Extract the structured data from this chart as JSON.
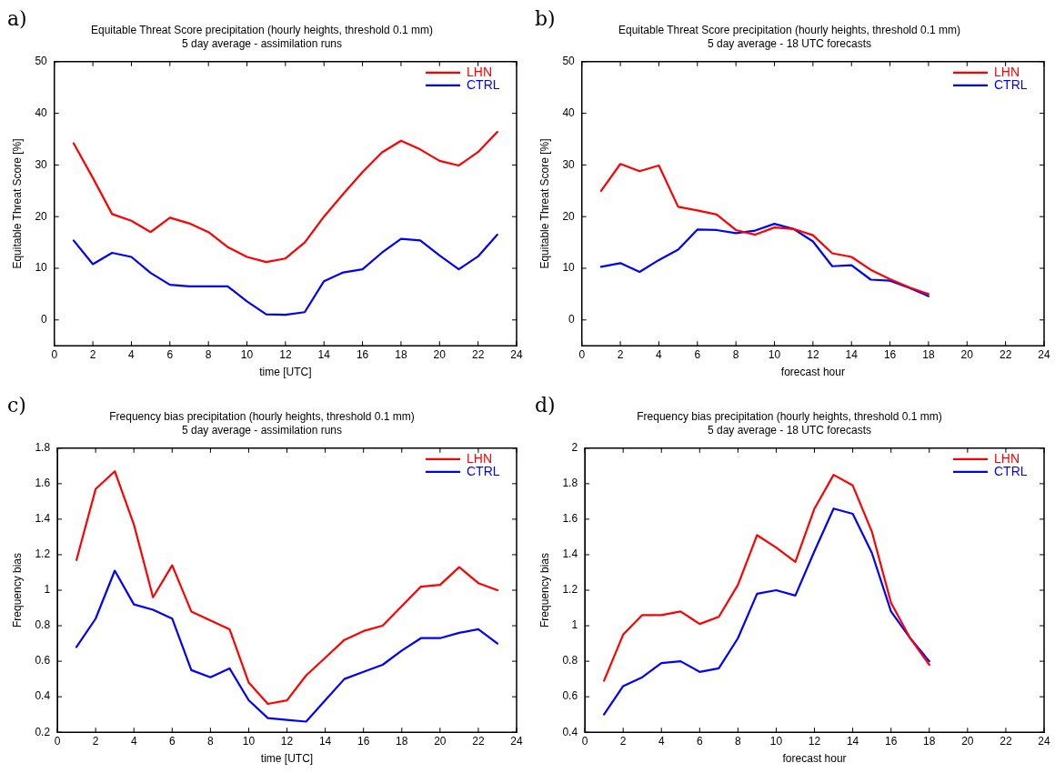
{
  "chart_data": [
    {
      "type": "line",
      "title": "Equitable Threat Score precipitation (hourly heights, threshold 0.1 mm)",
      "subtitle": "5 day average - assimilation runs",
      "xlabel": "time [UTC]",
      "ylabel": "Equitable Threat Score [%]",
      "annotations": [
        "a)"
      ],
      "x": [
        1,
        2,
        3,
        4,
        5,
        6,
        7,
        8,
        9,
        10,
        11,
        12,
        13,
        14,
        15,
        16,
        17,
        18,
        19,
        20,
        21,
        22,
        23
      ],
      "xlim": [
        0,
        24
      ],
      "xticks": [
        0,
        2,
        4,
        6,
        8,
        10,
        12,
        14,
        16,
        18,
        20,
        22,
        24
      ],
      "ylim": [
        -5,
        50
      ],
      "yticks": [
        0,
        10,
        20,
        30,
        40,
        50
      ],
      "grid": false,
      "legend": "top right",
      "marker": "none",
      "line_style": "solid",
      "series": [
        {
          "name": "LHN",
          "color": "#ff0000",
          "values": [
            34.2,
            27.5,
            20.5,
            19.2,
            17,
            19.8,
            18.7,
            17,
            14.1,
            12.2,
            11.2,
            11.9,
            15,
            20,
            24.4,
            28.6,
            32.4,
            34.7,
            33,
            30.8,
            29.9,
            32.5,
            36.4
          ]
        },
        {
          "name": "CTRL",
          "color": "#0000ff",
          "values": [
            15.4,
            10.8,
            13,
            12.2,
            9.1,
            6.8,
            6.5,
            6.5,
            6.5,
            3.6,
            1.1,
            1,
            1.5,
            7.5,
            9.2,
            9.8,
            13,
            15.7,
            15.4,
            12.5,
            9.8,
            12.3,
            16.5
          ]
        }
      ]
    },
    {
      "type": "line",
      "title": "Equitable Threat Score precipitation (hourly heights, threshold 0.1 mm)",
      "subtitle": "5 day average - 18 UTC forecasts",
      "xlabel": "forecast hour",
      "ylabel": "Equitable Threat Score [%]",
      "annotations": [
        "b)"
      ],
      "x": [
        1,
        2,
        3,
        4,
        5,
        6,
        7,
        8,
        9,
        10,
        11,
        12,
        13,
        14,
        15,
        16,
        17,
        18
      ],
      "xlim": [
        0,
        24
      ],
      "xticks": [
        0,
        2,
        4,
        6,
        8,
        10,
        12,
        14,
        16,
        18,
        20,
        22,
        24
      ],
      "ylim": [
        -5,
        50
      ],
      "yticks": [
        0,
        10,
        20,
        30,
        40,
        50
      ],
      "grid": false,
      "legend": "top right",
      "marker": "none",
      "line_style": "solid",
      "series": [
        {
          "name": "LHN",
          "color": "#ff0000",
          "values": [
            25,
            30.2,
            28.8,
            29.9,
            21.9,
            21.2,
            20.4,
            17.4,
            16.5,
            17.9,
            17.6,
            16.4,
            12.9,
            12.2,
            9.7,
            7.9,
            6.3,
            5
          ]
        },
        {
          "name": "CTRL",
          "color": "#0000ff",
          "values": [
            10.3,
            11,
            9.3,
            11.6,
            13.6,
            17.5,
            17.4,
            16.8,
            17.3,
            18.6,
            17.6,
            15.2,
            10.4,
            10.6,
            7.8,
            7.6,
            6.2,
            4.6
          ]
        }
      ]
    },
    {
      "type": "line",
      "title": "Frequency bias precipitation (hourly heights, threshold 0.1 mm)",
      "subtitle": "5 day average - assimilation runs",
      "xlabel": "time [UTC]",
      "ylabel": "Frequency bias",
      "annotations": [
        "c)"
      ],
      "x": [
        1,
        2,
        3,
        4,
        5,
        6,
        7,
        8,
        9,
        10,
        11,
        12,
        13,
        14,
        15,
        16,
        17,
        18,
        19,
        20,
        21,
        22,
        23
      ],
      "xlim": [
        0,
        24
      ],
      "xticks": [
        0,
        2,
        4,
        6,
        8,
        10,
        12,
        14,
        16,
        18,
        20,
        22,
        24
      ],
      "ylim": [
        0.2,
        1.8
      ],
      "yticks": [
        0.2,
        0.4,
        0.6,
        0.8,
        1,
        1.2,
        1.4,
        1.6,
        1.8
      ],
      "grid": false,
      "legend": "top right",
      "marker": "none",
      "line_style": "solid",
      "series": [
        {
          "name": "LHN",
          "color": "#ff0000",
          "values": [
            1.17,
            1.57,
            1.67,
            1.37,
            0.96,
            1.14,
            0.88,
            0.83,
            0.78,
            0.48,
            0.36,
            0.38,
            0.52,
            0.62,
            0.72,
            0.77,
            0.8,
            0.91,
            1.02,
            1.03,
            1.13,
            1.04,
            1.0
          ]
        },
        {
          "name": "CTRL",
          "color": "#0000ff",
          "values": [
            0.68,
            0.84,
            1.11,
            0.92,
            0.89,
            0.84,
            0.55,
            0.51,
            0.56,
            0.38,
            0.28,
            0.27,
            0.26,
            0.38,
            0.5,
            0.54,
            0.58,
            0.66,
            0.73,
            0.73,
            0.76,
            0.78,
            0.7
          ]
        }
      ]
    },
    {
      "type": "line",
      "title": "Frequency bias precipitation (hourly heights, threshold 0.1 mm)",
      "subtitle": "5 day average - 18 UTC forecasts",
      "xlabel": "forecast hour",
      "ylabel": "Frequency bias",
      "annotations": [
        "d)"
      ],
      "x": [
        1,
        2,
        3,
        4,
        5,
        6,
        7,
        8,
        9,
        10,
        11,
        12,
        13,
        14,
        15,
        16,
        17,
        18
      ],
      "xlim": [
        0,
        24
      ],
      "xticks": [
        0,
        2,
        4,
        6,
        8,
        10,
        12,
        14,
        16,
        18,
        20,
        22,
        24
      ],
      "ylim": [
        0.4,
        2
      ],
      "yticks": [
        0.4,
        0.6,
        0.8,
        1,
        1.2,
        1.4,
        1.6,
        1.8,
        2
      ],
      "grid": false,
      "legend": "top right",
      "marker": "none",
      "line_style": "solid",
      "series": [
        {
          "name": "LHN",
          "color": "#ff0000",
          "values": [
            0.69,
            0.95,
            1.06,
            1.06,
            1.08,
            1.01,
            1.05,
            1.23,
            1.51,
            1.44,
            1.36,
            1.66,
            1.85,
            1.79,
            1.53,
            1.13,
            0.93,
            0.78
          ]
        },
        {
          "name": "CTRL",
          "color": "#0000ff",
          "values": [
            0.5,
            0.66,
            0.71,
            0.79,
            0.8,
            0.74,
            0.76,
            0.93,
            1.18,
            1.2,
            1.17,
            1.42,
            1.66,
            1.63,
            1.41,
            1.08,
            0.93,
            0.8
          ]
        }
      ]
    }
  ]
}
